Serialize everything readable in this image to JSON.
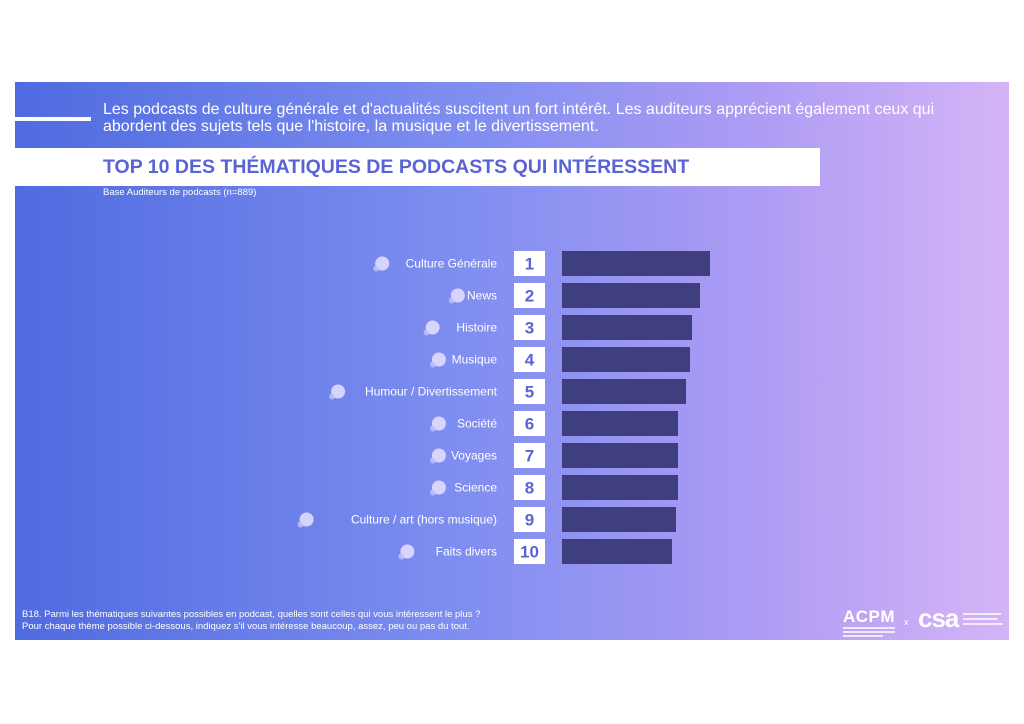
{
  "intro_text": "Les podcasts de culture générale et d'actualités suscitent un fort intérêt. Les auditeurs apprécient également ceux qui abordent des sujets tels que l'histoire, la musique et le divertissement.",
  "footnote_line1": "B18. Parmi les thématiques suivantes possibles en podcast, quelles sont celles qui vous intéressent le plus ?",
  "footnote_line2": "Pour chaque thème possible ci-dessous, indiquez s'il vous intéresse beaucoup, assez, peu ou pas du tout.",
  "logos": {
    "acpm": "ACPM",
    "separator": "x",
    "csa": "csa"
  },
  "colors": {
    "bar": "#3f3f80",
    "rank_box": "#ffffff",
    "rank_text": "#5a63d6",
    "title": "#5a63d6"
  },
  "chart_data": {
    "type": "bar",
    "orientation": "horizontal",
    "title": "TOP 10 DES THÉMATIQUES DE PODCASTS QUI INTÉRESSENT",
    "subtitle": "Base Auditeurs de podcasts (n=889)",
    "categories": [
      "Culture Générale",
      "News",
      "Histoire",
      "Musique",
      "Humour / Divertissement",
      "Société",
      "Voyages",
      "Science",
      "Culture / art (hors musique)",
      "Faits divers"
    ],
    "ranks": [
      "1",
      "2",
      "3",
      "4",
      "5",
      "6",
      "7",
      "8",
      "9",
      "10"
    ],
    "icons": [
      "lightbulb-icon",
      "megaphone-icon",
      "book-icon",
      "headphones-icon",
      "ticket-icon",
      "people-icon",
      "globe-icon",
      "atom-icon",
      "museum-icon",
      "magnifier-icon"
    ],
    "values": [
      148,
      138,
      130,
      128,
      124,
      116,
      116,
      116,
      114,
      110
    ],
    "xlim": [
      0,
      160
    ],
    "grid": false,
    "legend": "none"
  }
}
